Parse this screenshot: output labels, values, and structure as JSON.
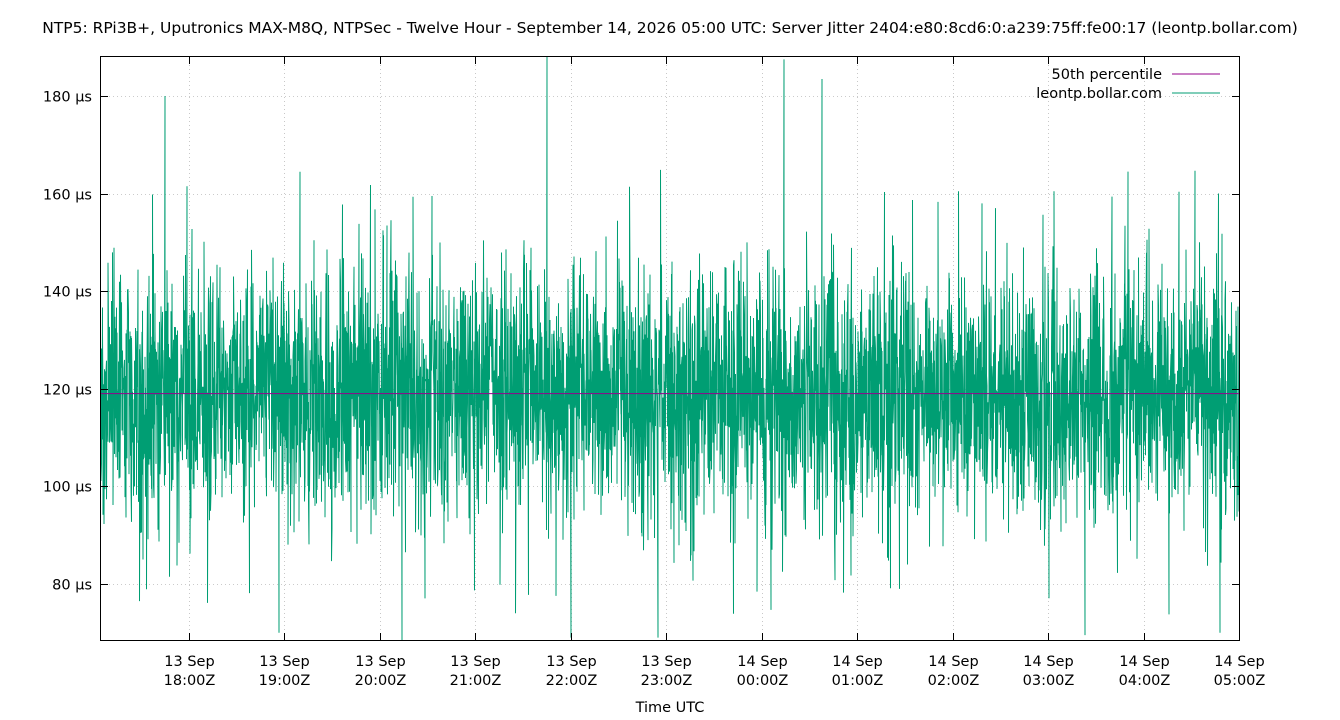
{
  "chart_data": {
    "type": "line",
    "title": "NTP5: RPi3B+, Uputronics MAX-M8Q, NTPSec - Twelve Hour - September 14, 2026 05:00 UTC: Server Jitter 2404:e80:8cd6:0:a239:75ff:fe00:17 (leontp.bollar.com)",
    "xlabel": "Time UTC",
    "ylabel": "",
    "y_unit": "µs",
    "ylim": [
      68.5,
      188.0
    ],
    "y_ticks": [
      80,
      100,
      120,
      140,
      160,
      180
    ],
    "y_tick_labels": [
      "80 µs",
      "100 µs",
      "120 µs",
      "140 µs",
      "160 µs",
      "180 µs"
    ],
    "xlim": [
      "2026-09-13T17:05Z",
      "2026-09-14T05:00Z"
    ],
    "x_ticks": [
      "2026-09-13T18:00Z",
      "2026-09-13T19:00Z",
      "2026-09-13T20:00Z",
      "2026-09-13T21:00Z",
      "2026-09-13T22:00Z",
      "2026-09-13T23:00Z",
      "2026-09-14T00:00Z",
      "2026-09-14T01:00Z",
      "2026-09-14T02:00Z",
      "2026-09-14T03:00Z",
      "2026-09-14T04:00Z",
      "2026-09-14T05:00Z"
    ],
    "x_tick_labels": [
      [
        "13 Sep",
        "18:00Z"
      ],
      [
        "13 Sep",
        "19:00Z"
      ],
      [
        "13 Sep",
        "20:00Z"
      ],
      [
        "13 Sep",
        "21:00Z"
      ],
      [
        "13 Sep",
        "22:00Z"
      ],
      [
        "13 Sep",
        "23:00Z"
      ],
      [
        "14 Sep",
        "00:00Z"
      ],
      [
        "14 Sep",
        "01:00Z"
      ],
      [
        "14 Sep",
        "02:00Z"
      ],
      [
        "14 Sep",
        "03:00Z"
      ],
      [
        "14 Sep",
        "04:00Z"
      ],
      [
        "14 Sep",
        "05:00Z"
      ]
    ],
    "grid": true,
    "legend_position": "top-right",
    "series": [
      {
        "name": "50th percentile",
        "color": "#94008b",
        "values": [
          119.0
        ]
      },
      {
        "name": "leontp.bollar.com",
        "color": "#009e73",
        "summary": {
          "typical_low": 85,
          "typical_high": 145,
          "median": 119.0
        },
        "spikes": [
          {
            "x": "2026-09-13T17:45Z",
            "y": 180.0
          },
          {
            "x": "2026-09-13T17:59Z",
            "y": 161.5
          },
          {
            "x": "2026-09-13T20:33Z",
            "y": 159.5
          },
          {
            "x": "2026-09-13T21:45Z",
            "y": 188.0
          },
          {
            "x": "2026-09-14T00:14Z",
            "y": 187.5
          },
          {
            "x": "2026-09-14T00:38Z",
            "y": 183.5
          },
          {
            "x": "2026-09-14T03:50Z",
            "y": 164.5
          },
          {
            "x": "2026-09-13T20:14Z",
            "y": 68.5
          },
          {
            "x": "2026-09-13T22:00Z",
            "y": 69.0
          },
          {
            "x": "2026-09-13T22:55Z",
            "y": 69.0
          },
          {
            "x": "2026-09-14T03:23Z",
            "y": 69.5
          },
          {
            "x": "2026-09-14T04:48Z",
            "y": 70.0
          },
          {
            "x": "2026-09-13T18:57Z",
            "y": 70.0
          }
        ]
      }
    ]
  }
}
